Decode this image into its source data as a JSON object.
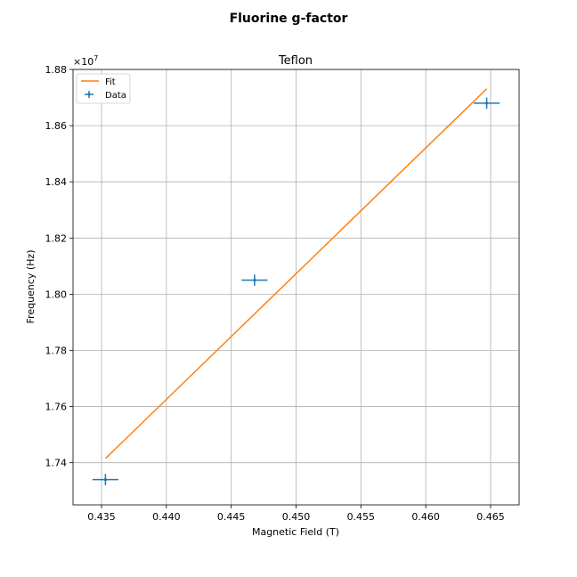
{
  "figure": {
    "suptitle": "Fluorine g-factor"
  },
  "chart_data": {
    "type": "scatter",
    "title": "Teflon",
    "xlabel": "Magnetic Field (T)",
    "ylabel": "Frequency (Hz)",
    "xlim": [
      0.4328,
      0.4672
    ],
    "ylim": [
      17.25,
      18.8
    ],
    "y_offset_text": "×10",
    "y_offset_exponent": "7",
    "xticks": [
      0.435,
      0.44,
      0.445,
      0.45,
      0.455,
      0.46,
      0.465
    ],
    "xtick_labels": [
      "0.435",
      "0.440",
      "0.445",
      "0.450",
      "0.455",
      "0.460",
      "0.465"
    ],
    "yticks": [
      17.4,
      17.6,
      17.8,
      18.0,
      18.2,
      18.4,
      18.6,
      18.8
    ],
    "ytick_labels": [
      "1.74",
      "1.76",
      "1.78",
      "1.80",
      "1.82",
      "1.84",
      "1.86",
      "1.88"
    ],
    "grid": true,
    "legend_placement": "upper-left",
    "series": [
      {
        "name": "Fit",
        "kind": "line",
        "color": "#ff7f0e",
        "x": [
          0.4353,
          0.4647
        ],
        "y": [
          17.415,
          18.731
        ]
      },
      {
        "name": "Data",
        "kind": "errorbar",
        "color": "#1f77b4",
        "x": [
          0.4353,
          0.4468,
          0.4647
        ],
        "y": [
          17.34,
          18.05,
          18.68
        ],
        "xerr": [
          0.001,
          0.001,
          0.001
        ],
        "yerr": [
          0.02,
          0.02,
          0.02
        ]
      }
    ]
  }
}
